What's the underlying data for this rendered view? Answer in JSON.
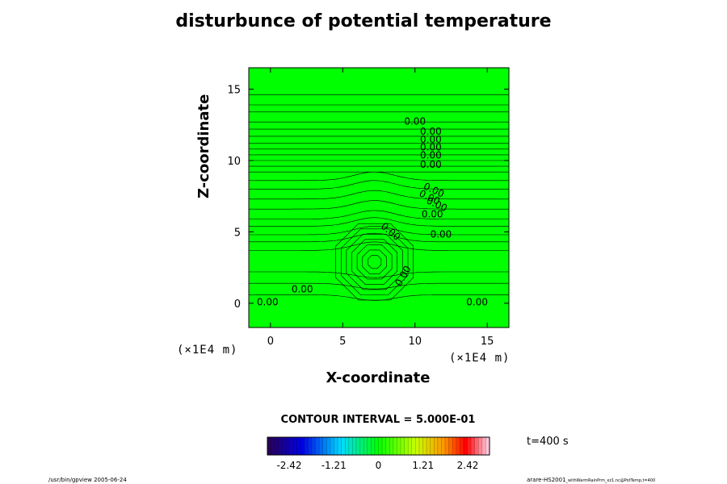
{
  "chart_data": {
    "type": "contour",
    "title": "disturbunce of potential temperature",
    "xlabel": "X-coordinate",
    "ylabel": "Z-coordinate",
    "x_scale_note": "(×1E4 m)",
    "y_scale_note": "(×1E4 m)",
    "xlim": [
      -1.5,
      16.5
    ],
    "ylim": [
      -1.7,
      16.5
    ],
    "x_ticks": [
      0,
      5,
      10,
      15
    ],
    "y_ticks": [
      0,
      5,
      10,
      15
    ],
    "fill_color": "#00ff00",
    "contour_label_values": [
      {
        "text": "0.00",
        "x": 10,
        "y": 12.7,
        "rotation": 0
      },
      {
        "text": "0.00",
        "x": 11.1,
        "y": 12.0,
        "rotation": 0
      },
      {
        "text": "0.00",
        "x": 11.1,
        "y": 11.45,
        "rotation": 0
      },
      {
        "text": "0.00",
        "x": 11.1,
        "y": 10.9,
        "rotation": 0
      },
      {
        "text": "0.00",
        "x": 11.1,
        "y": 10.35,
        "rotation": 0
      },
      {
        "text": "0.00",
        "x": 11.1,
        "y": 9.7,
        "rotation": 0
      },
      {
        "text": "0.00",
        "x": 11.3,
        "y": 7.9,
        "rotation": 25
      },
      {
        "text": "0.00",
        "x": 11.0,
        "y": 7.4,
        "rotation": 25
      },
      {
        "text": "0.00",
        "x": 11.5,
        "y": 6.9,
        "rotation": 25
      },
      {
        "text": "0.00",
        "x": 11.2,
        "y": 6.2,
        "rotation": 0
      },
      {
        "text": "0.00",
        "x": 8.3,
        "y": 5.0,
        "rotation": 40
      },
      {
        "text": "0.00",
        "x": 11.8,
        "y": 4.8,
        "rotation": 0
      },
      {
        "text": "0.00",
        "x": 9.2,
        "y": 1.9,
        "rotation": -60
      },
      {
        "text": "0.00",
        "x": 2.2,
        "y": 0.95,
        "rotation": 0
      },
      {
        "text": "0.00",
        "x": -0.2,
        "y": 0.05,
        "rotation": 0
      },
      {
        "text": "0.00",
        "x": 14.3,
        "y": 0.05,
        "rotation": 0
      }
    ],
    "horizontal_contour_levels_z": [
      14.6,
      13.9,
      13.4,
      12.7,
      12.2,
      11.7,
      11.2,
      10.8,
      10.4,
      10.0,
      9.6,
      9.2,
      8.6,
      8.0,
      7.3,
      6.6,
      5.9,
      5.4,
      4.8,
      4.3,
      3.7,
      2.2,
      1.4,
      0.6
    ],
    "center_feature": {
      "x": 7.2,
      "z": 2.9,
      "ring_radii": [
        0.5,
        0.9,
        1.3,
        1.7,
        2.1,
        2.5,
        2.9
      ]
    }
  },
  "contour_interval_text": "CONTOUR INTERVAL = 5.000E-01",
  "time_text": "t=400 s",
  "colorbar": {
    "tick_labels": [
      "-2.42",
      "-1.21",
      "0",
      "1.21",
      "2.42"
    ],
    "range": [
      -2.42,
      2.42
    ]
  },
  "footer": {
    "left": "/usr/bin/gpview 2005-06-24",
    "right_main": "arare-HS2001",
    "right_small": "_withWarmRainPrm_xz1.nc@PotTemp,t=400"
  }
}
